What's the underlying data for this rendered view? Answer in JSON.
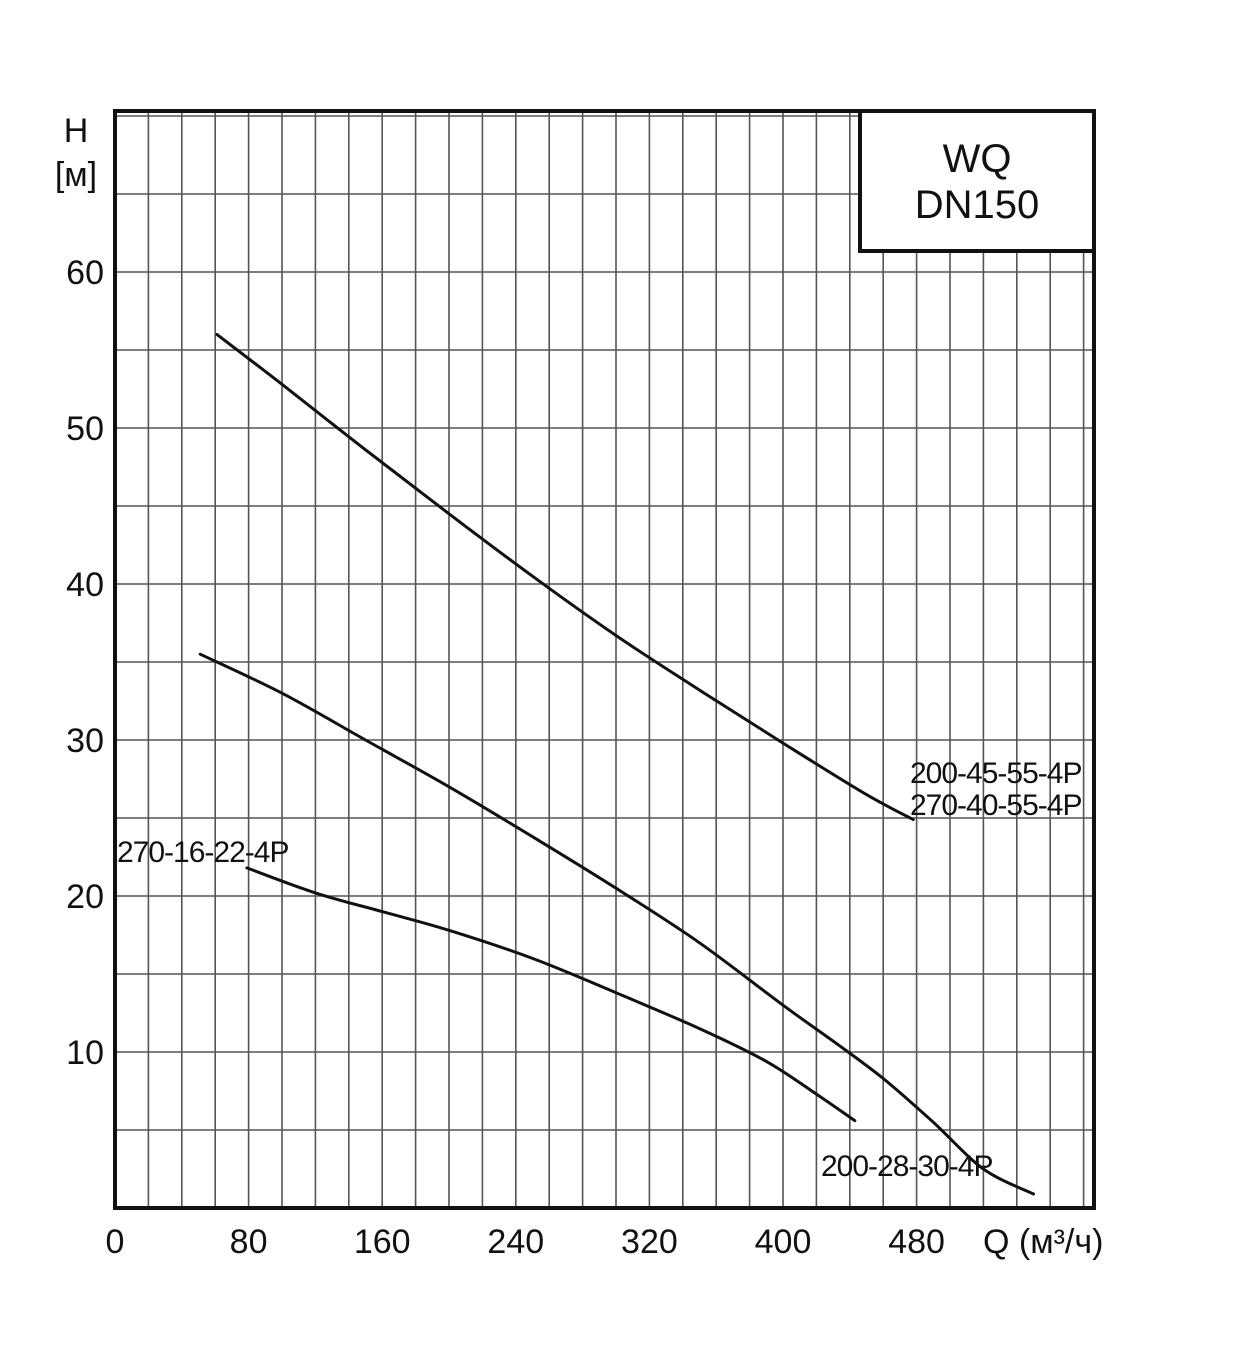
{
  "chart_data": {
    "type": "line",
    "title_lines": [
      "WQ",
      "DN150"
    ],
    "ylabel": "H",
    "ylabel_unit": "[м]",
    "xlabel": "Q (м³/ч)",
    "xlim": [
      0,
      586
    ],
    "ylim": [
      0,
      70.3
    ],
    "x_ticks": [
      0,
      80,
      160,
      240,
      320,
      400,
      480
    ],
    "y_ticks": [
      10,
      20,
      30,
      40,
      50,
      60
    ],
    "grid": true,
    "line_color": "#111111",
    "grid_color": "#555555",
    "series": [
      {
        "labels": [
          "200-45-55-4P",
          "270-40-55-4P"
        ],
        "x": [
          61,
          100,
          150,
          200,
          250,
          300,
          350,
          400,
          450,
          478
        ],
        "y": [
          56.0,
          52.8,
          48.6,
          44.5,
          40.5,
          36.7,
          33.2,
          29.8,
          26.5,
          24.9
        ]
      },
      {
        "labels": [
          "200-28-30-4P"
        ],
        "x": [
          51,
          100,
          150,
          200,
          250,
          300,
          350,
          400,
          430,
          460,
          490,
          520,
          550
        ],
        "y": [
          35.5,
          33.0,
          30.0,
          27.0,
          23.8,
          20.5,
          17.0,
          13.0,
          10.7,
          8.3,
          5.5,
          2.5,
          0.9
        ]
      },
      {
        "labels": [
          "270-16-22-4P"
        ],
        "x": [
          79,
          120,
          160,
          200,
          250,
          300,
          350,
          390,
          420,
          443
        ],
        "y": [
          21.8,
          20.2,
          19.0,
          17.8,
          16.0,
          13.8,
          11.5,
          9.4,
          7.3,
          5.6
        ]
      }
    ]
  }
}
